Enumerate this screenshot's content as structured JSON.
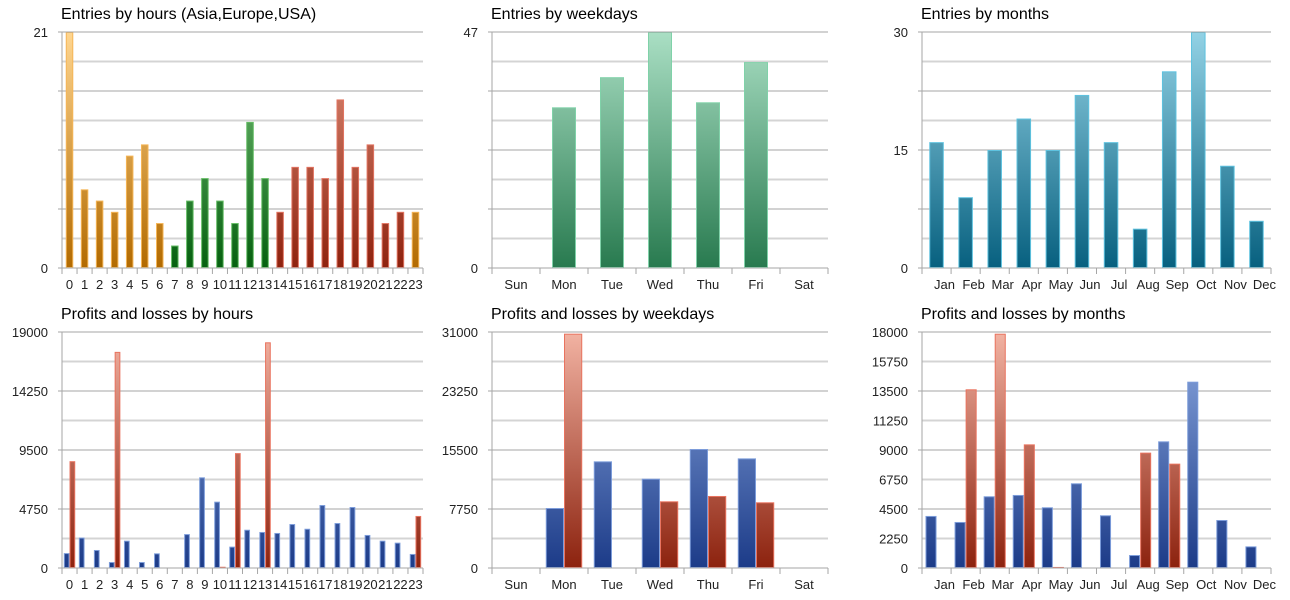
{
  "colors": {
    "asia": {
      "top": "#ffd690",
      "bottom": "#b26a00",
      "stroke": "#f5b556"
    },
    "europe": {
      "top": "#7fc67f",
      "bottom": "#066010",
      "stroke": "#62bb62"
    },
    "usa": {
      "top": "#e3957f",
      "bottom": "#8e220e",
      "stroke": "#e27461"
    },
    "weekday": {
      "top": "#aadfc4",
      "bottom": "#287a4f",
      "stroke": "#80d2a9"
    },
    "month": {
      "top": "#93d2e5",
      "bottom": "#07607f",
      "stroke": "#5ec2df"
    },
    "profit": {
      "top": "#8eabe2",
      "bottom": "#1c3b88",
      "stroke": "#7c9cda"
    },
    "loss": {
      "top": "#f2b3a3",
      "bottom": "#8c220e",
      "stroke": "#e9735f"
    },
    "grid_major": "#a6a6a6",
    "grid_minor": "#d4d4d4"
  },
  "chart_data": [
    {
      "id": "entries-hours",
      "type": "bar",
      "title": "Entries by hours (Asia,Europe,USA)",
      "categories": [
        "0",
        "1",
        "2",
        "3",
        "4",
        "5",
        "6",
        "7",
        "8",
        "9",
        "10",
        "11",
        "12",
        "13",
        "14",
        "15",
        "16",
        "17",
        "18",
        "19",
        "20",
        "21",
        "22",
        "23"
      ],
      "series": [
        {
          "name": "Entries",
          "values": [
            21,
            7,
            6,
            5,
            10,
            11,
            4,
            2,
            6,
            8,
            6,
            4,
            13,
            8,
            5,
            9,
            9,
            8,
            15,
            9,
            11,
            4,
            5,
            5
          ]
        }
      ],
      "category_groups": [
        "asia",
        "asia",
        "asia",
        "asia",
        "asia",
        "asia",
        "asia",
        "europe",
        "europe",
        "europe",
        "europe",
        "europe",
        "europe",
        "europe",
        "usa",
        "usa",
        "usa",
        "usa",
        "usa",
        "usa",
        "usa",
        "usa",
        "usa",
        "asia"
      ],
      "ylim": [
        0,
        21
      ],
      "yticks": [
        "0",
        "21"
      ],
      "grid": true,
      "grid_divisions": 8,
      "xlabel": "",
      "ylabel": ""
    },
    {
      "id": "entries-weekdays",
      "type": "bar",
      "title": "Entries by weekdays",
      "categories": [
        "Sun",
        "Mon",
        "Tue",
        "Wed",
        "Thu",
        "Fri",
        "Sat"
      ],
      "series": [
        {
          "name": "Entries",
          "values": [
            0,
            32,
            38,
            47,
            33,
            41,
            0
          ]
        }
      ],
      "color_key": "weekday",
      "ylim": [
        0,
        47
      ],
      "yticks": [
        "0",
        "47"
      ],
      "grid": true,
      "grid_divisions": 8,
      "xlabel": "",
      "ylabel": ""
    },
    {
      "id": "entries-months",
      "type": "bar",
      "title": "Entries by months",
      "categories": [
        "Jan",
        "Feb",
        "Mar",
        "Apr",
        "May",
        "Jun",
        "Jul",
        "Aug",
        "Sep",
        "Oct",
        "Nov",
        "Dec"
      ],
      "series": [
        {
          "name": "Entries",
          "values": [
            16,
            9,
            15,
            19,
            15,
            22,
            16,
            5,
            25,
            30,
            13,
            6
          ]
        }
      ],
      "color_key": "month",
      "ylim": [
        0,
        30
      ],
      "yticks": [
        "0",
        "15",
        "30"
      ],
      "grid": true,
      "grid_divisions": 8,
      "xlabel": "",
      "ylabel": ""
    },
    {
      "id": "pl-hours",
      "type": "bar",
      "title": "Profits and losses by hours",
      "categories": [
        "0",
        "1",
        "2",
        "3",
        "4",
        "5",
        "6",
        "7",
        "8",
        "9",
        "10",
        "11",
        "12",
        "13",
        "14",
        "15",
        "16",
        "17",
        "18",
        "19",
        "20",
        "21",
        "22",
        "23"
      ],
      "series": [
        {
          "name": "Profits",
          "color_key": "profit",
          "values": [
            1200,
            2450,
            1450,
            480,
            2200,
            480,
            1180,
            0,
            2730,
            7300,
            5340,
            1720,
            3080,
            2900,
            2820,
            3540,
            3160,
            5070,
            3620,
            4910,
            2660,
            2200,
            2040,
            1130
          ]
        },
        {
          "name": "Losses",
          "color_key": "loss",
          "values": [
            8600,
            0,
            0,
            17400,
            0,
            0,
            0,
            0,
            0,
            0,
            100,
            9250,
            0,
            18170,
            0,
            0,
            0,
            0,
            0,
            0,
            0,
            0,
            0,
            4190
          ]
        }
      ],
      "ylim": [
        0,
        19000
      ],
      "yticks": [
        "0",
        "4750",
        "9500",
        "14250",
        "19000"
      ],
      "grid": true,
      "grid_divisions": 8,
      "xlabel": "",
      "ylabel": ""
    },
    {
      "id": "pl-weekdays",
      "type": "bar",
      "title": "Profits and losses by weekdays",
      "categories": [
        "Sun",
        "Mon",
        "Tue",
        "Wed",
        "Thu",
        "Fri",
        "Sat"
      ],
      "series": [
        {
          "name": "Profits",
          "color_key": "profit",
          "values": [
            0,
            7880,
            14010,
            11730,
            15630,
            14400,
            0
          ]
        },
        {
          "name": "Losses",
          "color_key": "loss",
          "values": [
            0,
            30780,
            0,
            8760,
            9460,
            8630,
            0
          ]
        }
      ],
      "ylim": [
        0,
        31000
      ],
      "yticks": [
        "0",
        "7750",
        "15500",
        "23250",
        "31000"
      ],
      "grid": true,
      "grid_divisions": 8,
      "xlabel": "",
      "ylabel": ""
    },
    {
      "id": "pl-months",
      "type": "bar",
      "title": "Profits and losses by months",
      "categories": [
        "Jan",
        "Feb",
        "Mar",
        "Apr",
        "May",
        "Jun",
        "Jul",
        "Aug",
        "Sep",
        "Oct",
        "Nov",
        "Dec"
      ],
      "series": [
        {
          "name": "Profits",
          "color_key": "profit",
          "values": [
            3970,
            3510,
            5470,
            5570,
            4630,
            6460,
            4020,
            990,
            9660,
            14210,
            3660,
            1650
          ]
        },
        {
          "name": "Losses",
          "color_key": "loss",
          "values": [
            0,
            13630,
            17870,
            9430,
            80,
            0,
            0,
            8800,
            7960,
            0,
            0,
            0
          ]
        }
      ],
      "ylim": [
        0,
        18000
      ],
      "yticks": [
        "0",
        "2250",
        "4500",
        "6750",
        "9000",
        "11250",
        "13500",
        "15750",
        "18000"
      ],
      "grid": true,
      "grid_divisions": 8,
      "xlabel": "",
      "ylabel": ""
    }
  ]
}
